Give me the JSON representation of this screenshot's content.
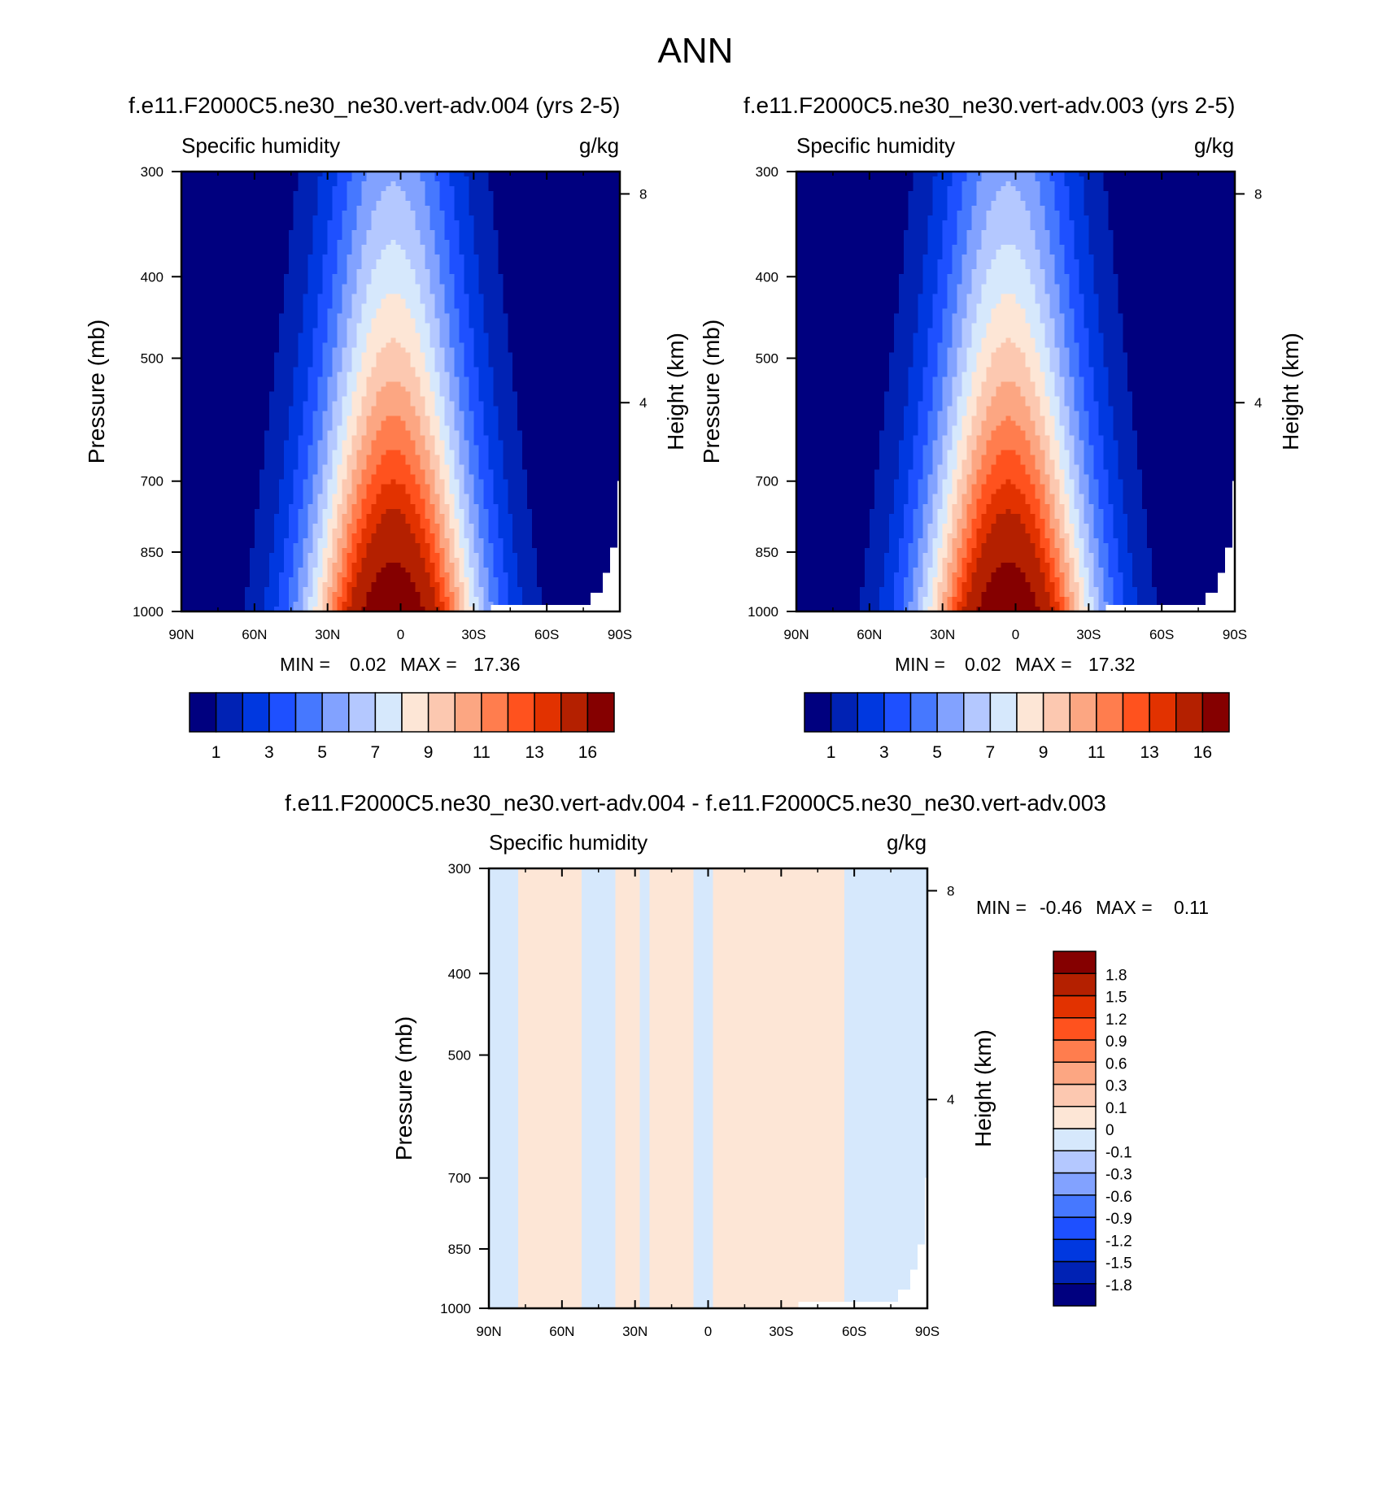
{
  "figure_title": "ANN",
  "chart_data": [
    {
      "type": "heatmap",
      "title": "f.e11.F2000C5.ne30_ne30.vert-adv.004 (yrs 2-5)",
      "subtitle_left": "Specific humidity",
      "subtitle_right": "g/kg",
      "xlabel": "",
      "ylabel": "Pressure (mb)",
      "ylabel_right": "Height (km)",
      "x_ticks": [
        "90N",
        "60N",
        "30N",
        "0",
        "30S",
        "60S",
        "90S"
      ],
      "x_tick_values": [
        90,
        60,
        30,
        0,
        -30,
        -60,
        -90
      ],
      "y_ticks": [
        "300",
        "400",
        "500",
        "700",
        "850",
        "1000"
      ],
      "y_tick_values": [
        300,
        400,
        500,
        700,
        850,
        1000
      ],
      "y_right_ticks": [
        "8",
        "4"
      ],
      "y_right_tick_values": [
        8,
        4
      ],
      "xlim": [
        90,
        -90
      ],
      "ylim": [
        1000,
        300
      ],
      "y_scale": "log",
      "min_label": "MIN =",
      "min_value": "0.02",
      "max_label": "MAX =",
      "max_value": "17.36",
      "colorbar": {
        "orientation": "horizontal",
        "levels": [
          1,
          2,
          3,
          4,
          5,
          6,
          7,
          8,
          9,
          10,
          11,
          12,
          13,
          14,
          16
        ],
        "tick_labels": [
          "1",
          "3",
          "5",
          "7",
          "9",
          "11",
          "13",
          "16"
        ],
        "colors": [
          "#00007f",
          "#0022b4",
          "#0038e0",
          "#1e50ff",
          "#4678ff",
          "#82a2ff",
          "#b4c8ff",
          "#d6e8fc",
          "#fde6d6",
          "#fcc8b0",
          "#fca682",
          "#ff7d4e",
          "#ff521e",
          "#e23200",
          "#b42000",
          "#850000"
        ]
      },
      "data_scale": 1.0
    },
    {
      "type": "heatmap",
      "title": "f.e11.F2000C5.ne30_ne30.vert-adv.003 (yrs 2-5)",
      "subtitle_left": "Specific humidity",
      "subtitle_right": "g/kg",
      "xlabel": "",
      "ylabel": "Pressure (mb)",
      "ylabel_right": "Height (km)",
      "x_ticks": [
        "90N",
        "60N",
        "30N",
        "0",
        "30S",
        "60S",
        "90S"
      ],
      "x_tick_values": [
        90,
        60,
        30,
        0,
        -30,
        -60,
        -90
      ],
      "y_ticks": [
        "300",
        "400",
        "500",
        "700",
        "850",
        "1000"
      ],
      "y_tick_values": [
        300,
        400,
        500,
        700,
        850,
        1000
      ],
      "y_right_ticks": [
        "8",
        "4"
      ],
      "y_right_tick_values": [
        8,
        4
      ],
      "xlim": [
        90,
        -90
      ],
      "ylim": [
        1000,
        300
      ],
      "y_scale": "log",
      "min_label": "MIN =",
      "min_value": "0.02",
      "max_label": "MAX =",
      "max_value": "17.32",
      "colorbar": {
        "orientation": "horizontal",
        "levels": [
          1,
          2,
          3,
          4,
          5,
          6,
          7,
          8,
          9,
          10,
          11,
          12,
          13,
          14,
          16
        ],
        "tick_labels": [
          "1",
          "3",
          "5",
          "7",
          "9",
          "11",
          "13",
          "16"
        ],
        "colors": [
          "#00007f",
          "#0022b4",
          "#0038e0",
          "#1e50ff",
          "#4678ff",
          "#82a2ff",
          "#b4c8ff",
          "#d6e8fc",
          "#fde6d6",
          "#fcc8b0",
          "#fca682",
          "#ff7d4e",
          "#ff521e",
          "#e23200",
          "#b42000",
          "#850000"
        ]
      },
      "data_scale": 0.9977
    },
    {
      "type": "heatmap",
      "title": "f.e11.F2000C5.ne30_ne30.vert-adv.004 - f.e11.F2000C5.ne30_ne30.vert-adv.003",
      "subtitle_left": "Specific humidity",
      "subtitle_right": "g/kg",
      "xlabel": "",
      "ylabel": "Pressure (mb)",
      "ylabel_right": "Height (km)",
      "x_ticks": [
        "90N",
        "60N",
        "30N",
        "0",
        "30S",
        "60S",
        "90S"
      ],
      "x_tick_values": [
        90,
        60,
        30,
        0,
        -30,
        -60,
        -90
      ],
      "y_ticks": [
        "300",
        "400",
        "500",
        "700",
        "850",
        "1000"
      ],
      "y_tick_values": [
        300,
        400,
        500,
        700,
        850,
        1000
      ],
      "y_right_ticks": [
        "8",
        "4"
      ],
      "y_right_tick_values": [
        8,
        4
      ],
      "xlim": [
        90,
        -90
      ],
      "ylim": [
        1000,
        300
      ],
      "y_scale": "log",
      "min_label": "MIN =",
      "min_value": "-0.46",
      "max_label": "MAX =",
      "max_value": "0.11",
      "colorbar": {
        "orientation": "vertical",
        "levels": [
          -1.8,
          -1.5,
          -1.2,
          -0.9,
          -0.6,
          -0.3,
          -0.1,
          0,
          0.1,
          0.3,
          0.6,
          0.9,
          1.2,
          1.5,
          1.8
        ],
        "tick_labels": [
          "-1.8",
          "-1.5",
          "-1.2",
          "-0.9",
          "-0.6",
          "-0.3",
          "-0.1",
          "0",
          "0.1",
          "0.3",
          "0.6",
          "0.9",
          "1.2",
          "1.5",
          "1.8"
        ],
        "colors": [
          "#00007f",
          "#0022b4",
          "#0038e0",
          "#1e50ff",
          "#4678ff",
          "#82a2ff",
          "#b4c8ff",
          "#d6e8fc",
          "#fde6d6",
          "#fcc8b0",
          "#fca682",
          "#ff7d4e",
          "#ff521e",
          "#e23200",
          "#b42000",
          "#850000"
        ]
      },
      "positive_bands_lat": [
        [
          77,
          52
        ],
        [
          38,
          28
        ],
        [
          24,
          7
        ],
        [
          -3,
          -55
        ]
      ],
      "negative_value": -0.05,
      "positive_value": 0.05
    }
  ]
}
